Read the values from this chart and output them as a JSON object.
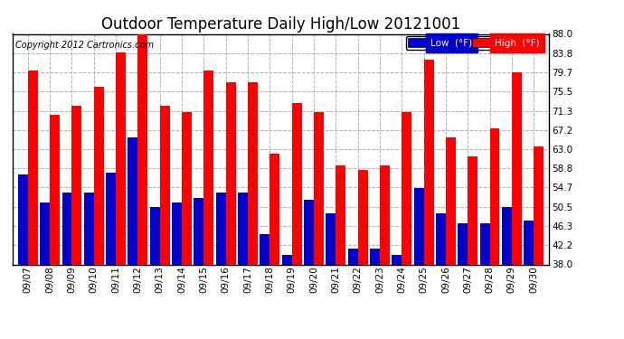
{
  "title": "Outdoor Temperature Daily High/Low 20121001",
  "copyright": "Copyright 2012 Cartronics.com",
  "legend_low": "Low  (°F)",
  "legend_high": "High  (°F)",
  "dates": [
    "09/07",
    "09/08",
    "09/09",
    "09/10",
    "09/11",
    "09/12",
    "09/13",
    "09/14",
    "09/15",
    "09/16",
    "09/17",
    "09/18",
    "09/19",
    "09/20",
    "09/21",
    "09/22",
    "09/23",
    "09/24",
    "09/25",
    "09/26",
    "09/27",
    "09/28",
    "09/29",
    "09/30"
  ],
  "highs": [
    80.0,
    70.5,
    72.5,
    76.5,
    84.0,
    88.0,
    72.5,
    71.0,
    80.0,
    77.5,
    77.5,
    62.0,
    73.0,
    71.0,
    59.5,
    58.5,
    59.5,
    71.0,
    82.5,
    65.5,
    61.5,
    67.5,
    79.7,
    63.5
  ],
  "lows": [
    57.5,
    51.5,
    53.5,
    53.5,
    58.0,
    65.5,
    50.5,
    51.5,
    52.5,
    53.5,
    53.5,
    44.5,
    40.0,
    52.0,
    49.0,
    41.5,
    41.5,
    40.0,
    54.5,
    49.0,
    47.0,
    47.0,
    50.5,
    47.5
  ],
  "ylim_min": 38.0,
  "ylim_max": 88.0,
  "yticks": [
    38.0,
    42.2,
    46.3,
    50.5,
    54.7,
    58.8,
    63.0,
    67.2,
    71.3,
    75.5,
    79.7,
    83.8,
    88.0
  ],
  "bar_color_high": "#ff0000",
  "bar_color_low": "#0000cc",
  "background_color": "#ffffff",
  "grid_color": "#b0b0b0",
  "title_fontsize": 12,
  "tick_fontsize": 7.5,
  "copyright_fontsize": 7.0
}
